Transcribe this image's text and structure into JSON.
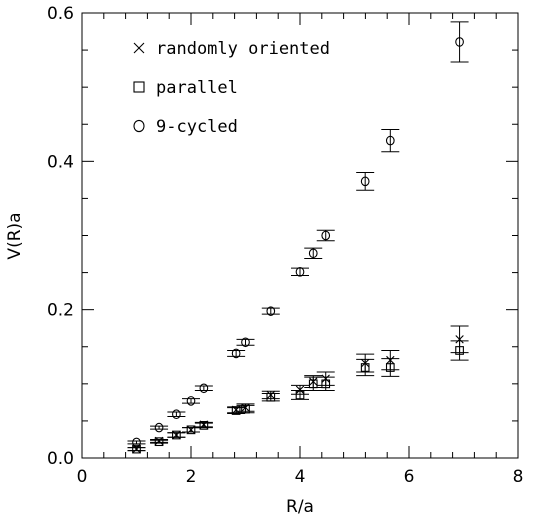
{
  "chart_data": {
    "type": "scatter",
    "title": "",
    "xlabel": "R/a",
    "ylabel": "V(R)a",
    "xlim": [
      0,
      8
    ],
    "ylim": [
      0,
      0.6
    ],
    "x_ticks": [
      "0",
      "2",
      "4",
      "6",
      "8"
    ],
    "y_ticks": [
      "0.0",
      "0.2",
      "0.4",
      "0.6"
    ],
    "x_tick_values": [
      0,
      2,
      4,
      6,
      8
    ],
    "y_tick_values": [
      0,
      0.2,
      0.4,
      0.6
    ],
    "x_minor_step": 0.4,
    "y_minor_step": 0.05,
    "grid": false,
    "legend_position": "top-left",
    "series": [
      {
        "name": "randomly oriented",
        "marker": "cross",
        "color": "#000000",
        "points": [
          {
            "x": 1.0,
            "y": 0.012,
            "err": 0.002
          },
          {
            "x": 1.414,
            "y": 0.023,
            "err": 0.002
          },
          {
            "x": 1.732,
            "y": 0.031,
            "err": 0.003
          },
          {
            "x": 2.0,
            "y": 0.038,
            "err": 0.003
          },
          {
            "x": 2.236,
            "y": 0.045,
            "err": 0.003
          },
          {
            "x": 2.828,
            "y": 0.065,
            "err": 0.004
          },
          {
            "x": 3.0,
            "y": 0.068,
            "err": 0.005
          },
          {
            "x": 3.464,
            "y": 0.085,
            "err": 0.005
          },
          {
            "x": 4.0,
            "y": 0.092,
            "err": 0.006
          },
          {
            "x": 4.243,
            "y": 0.103,
            "err": 0.008
          },
          {
            "x": 4.472,
            "y": 0.107,
            "err": 0.009
          },
          {
            "x": 5.196,
            "y": 0.128,
            "err": 0.012
          },
          {
            "x": 5.657,
            "y": 0.132,
            "err": 0.013
          },
          {
            "x": 6.928,
            "y": 0.16,
            "err": 0.018
          }
        ]
      },
      {
        "name": "parallel",
        "marker": "square",
        "color": "#000000",
        "points": [
          {
            "x": 1.0,
            "y": 0.012,
            "err": 0.002
          },
          {
            "x": 1.414,
            "y": 0.022,
            "err": 0.002
          },
          {
            "x": 1.732,
            "y": 0.031,
            "err": 0.003
          },
          {
            "x": 2.0,
            "y": 0.038,
            "err": 0.003
          },
          {
            "x": 2.236,
            "y": 0.044,
            "err": 0.003
          },
          {
            "x": 2.828,
            "y": 0.064,
            "err": 0.004
          },
          {
            "x": 3.0,
            "y": 0.066,
            "err": 0.005
          },
          {
            "x": 3.464,
            "y": 0.082,
            "err": 0.005
          },
          {
            "x": 4.0,
            "y": 0.085,
            "err": 0.006
          },
          {
            "x": 4.243,
            "y": 0.1,
            "err": 0.009
          },
          {
            "x": 4.472,
            "y": 0.1,
            "err": 0.009
          },
          {
            "x": 5.196,
            "y": 0.122,
            "err": 0.011
          },
          {
            "x": 5.657,
            "y": 0.122,
            "err": 0.012
          },
          {
            "x": 6.928,
            "y": 0.145,
            "err": 0.013
          }
        ]
      },
      {
        "name": "9-cycled",
        "marker": "circle",
        "color": "#000000",
        "points": [
          {
            "x": 1.0,
            "y": 0.021,
            "err": 0.002
          },
          {
            "x": 1.414,
            "y": 0.041,
            "err": 0.002
          },
          {
            "x": 1.732,
            "y": 0.059,
            "err": 0.003
          },
          {
            "x": 2.0,
            "y": 0.077,
            "err": 0.003
          },
          {
            "x": 2.236,
            "y": 0.094,
            "err": 0.003
          },
          {
            "x": 2.828,
            "y": 0.141,
            "err": 0.004
          },
          {
            "x": 3.0,
            "y": 0.156,
            "err": 0.004
          },
          {
            "x": 3.464,
            "y": 0.198,
            "err": 0.004
          },
          {
            "x": 4.0,
            "y": 0.251,
            "err": 0.005
          },
          {
            "x": 4.243,
            "y": 0.276,
            "err": 0.007
          },
          {
            "x": 4.472,
            "y": 0.3,
            "err": 0.007
          },
          {
            "x": 5.196,
            "y": 0.373,
            "err": 0.012
          },
          {
            "x": 5.657,
            "y": 0.428,
            "err": 0.015
          },
          {
            "x": 6.928,
            "y": 0.561,
            "err": 0.027
          }
        ]
      }
    ]
  }
}
